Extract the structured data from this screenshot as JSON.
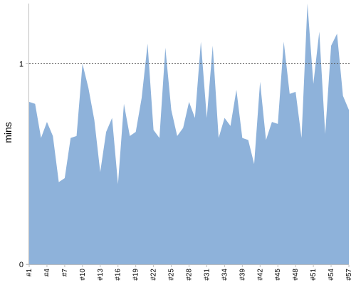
{
  "chart_data": {
    "type": "area",
    "title": "",
    "xlabel": "",
    "ylabel": "mins",
    "ylim": [
      0,
      1.3
    ],
    "y_ticks": [
      {
        "value": 0,
        "label": "0"
      },
      {
        "value": 1,
        "label": "1"
      }
    ],
    "reference_line": {
      "value": 1,
      "style": "dotted",
      "color": "#555555"
    },
    "colors": {
      "area": "#8eb2da",
      "axis": "#bfbfbf",
      "reference": "#555555"
    },
    "grid": false,
    "legend": "none",
    "x_labels": [
      "#1",
      "#4",
      "#7",
      "#10",
      "#13",
      "#16",
      "#19",
      "#22",
      "#25",
      "#28",
      "#31",
      "#34",
      "#39",
      "#42",
      "#45",
      "#48",
      "#51",
      "#54",
      "#57"
    ],
    "series": [
      {
        "values": [
          0.81,
          0.8,
          0.63,
          0.71,
          0.64,
          0.41,
          0.43,
          0.63,
          0.64,
          1.0,
          0.88,
          0.72,
          0.46,
          0.66,
          0.73,
          0.4,
          0.8,
          0.64,
          0.66,
          0.83,
          1.1,
          0.67,
          0.63,
          1.08,
          0.77,
          0.64,
          0.68,
          0.81,
          0.73,
          1.11,
          0.73,
          1.09,
          0.63,
          0.73,
          0.69,
          0.87,
          0.63,
          0.62,
          0.5,
          0.91,
          0.62,
          0.71,
          0.7,
          1.11,
          0.85,
          0.86,
          0.63,
          1.3,
          0.9,
          1.16,
          0.65,
          1.09,
          1.15,
          0.84,
          0.77
        ]
      }
    ]
  }
}
